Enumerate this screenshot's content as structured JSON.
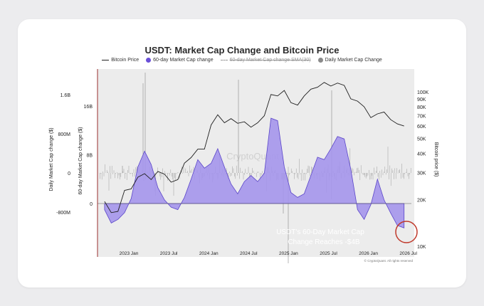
{
  "chart_data": {
    "type": "area",
    "title": "USDT: Market Cap Change and Bitcoin Price",
    "legend": [
      {
        "label": "Bitcoin Price",
        "style": "line",
        "color": "#222222"
      },
      {
        "label": "60-day Market Cap change",
        "style": "dot",
        "color": "#6a4fd8"
      },
      {
        "label": "60-day Market Cap change SMA(30)",
        "style": "dashed",
        "color": "#9a9a9a",
        "struck": true
      },
      {
        "label": "Daily Market Cap Change",
        "style": "dot",
        "color": "#8a8a8a"
      }
    ],
    "y_left_outer": {
      "label": "Daily Market Cap change ($)",
      "ticks": [
        "1.6B",
        "800M",
        "0",
        "-800M"
      ],
      "range": [
        -1200000000,
        1600000000
      ]
    },
    "y_left_inner": {
      "label": "60-day Market Cap change ($)",
      "ticks": [
        "16B",
        "8B",
        "0"
      ],
      "range": [
        -5000000000,
        16000000000
      ]
    },
    "y_right": {
      "label": "Bitcoin price ($)",
      "scale": "log",
      "ticks": [
        "100K",
        "90K",
        "80K",
        "70K",
        "60K",
        "50K",
        "40K",
        "30K",
        "20K",
        "10K"
      ]
    },
    "x_ticks": [
      "2023 Jan",
      "2023 Jul",
      "2024 Jan",
      "2024 Jul",
      "2025 Jan",
      "2025 Jul",
      "2026 Jan",
      "2026 Jul"
    ],
    "series_60d_mcap_change_B": [
      {
        "x": "2022-10",
        "y": -1.0
      },
      {
        "x": "2022-11",
        "y": -3.2
      },
      {
        "x": "2022-12",
        "y": -2.6
      },
      {
        "x": "2023-01",
        "y": -1.5
      },
      {
        "x": "2023-02",
        "y": 0.8
      },
      {
        "x": "2023-03",
        "y": 6.0
      },
      {
        "x": "2023-04",
        "y": 8.6
      },
      {
        "x": "2023-05",
        "y": 6.4
      },
      {
        "x": "2023-06",
        "y": 2.6
      },
      {
        "x": "2023-07",
        "y": 0.6
      },
      {
        "x": "2023-08",
        "y": -0.6
      },
      {
        "x": "2023-09",
        "y": -1.0
      },
      {
        "x": "2023-10",
        "y": 1.0
      },
      {
        "x": "2023-11",
        "y": 4.0
      },
      {
        "x": "2023-12",
        "y": 7.2
      },
      {
        "x": "2024-01",
        "y": 5.8
      },
      {
        "x": "2024-02",
        "y": 6.6
      },
      {
        "x": "2024-03",
        "y": 9.0
      },
      {
        "x": "2024-04",
        "y": 6.0
      },
      {
        "x": "2024-05",
        "y": 3.2
      },
      {
        "x": "2024-06",
        "y": 1.6
      },
      {
        "x": "2024-07",
        "y": 3.6
      },
      {
        "x": "2024-08",
        "y": 4.6
      },
      {
        "x": "2024-09",
        "y": 3.6
      },
      {
        "x": "2024-10",
        "y": 5.0
      },
      {
        "x": "2024-11",
        "y": 14.0
      },
      {
        "x": "2024-12",
        "y": 13.6
      },
      {
        "x": "2025-01",
        "y": 6.0
      },
      {
        "x": "2025-02",
        "y": 1.8
      },
      {
        "x": "2025-03",
        "y": 1.0
      },
      {
        "x": "2025-04",
        "y": 1.6
      },
      {
        "x": "2025-05",
        "y": 4.6
      },
      {
        "x": "2025-06",
        "y": 7.6
      },
      {
        "x": "2025-07",
        "y": 7.2
      },
      {
        "x": "2025-08",
        "y": 9.0
      },
      {
        "x": "2025-09",
        "y": 11.0
      },
      {
        "x": "2025-10",
        "y": 10.6
      },
      {
        "x": "2025-11",
        "y": 5.6
      },
      {
        "x": "2025-12",
        "y": -1.0
      },
      {
        "x": "2026-01",
        "y": -2.6
      },
      {
        "x": "2026-02",
        "y": -0.2
      },
      {
        "x": "2026-03",
        "y": 4.0
      },
      {
        "x": "2026-04",
        "y": 0.6
      },
      {
        "x": "2026-05",
        "y": -1.6
      },
      {
        "x": "2026-06",
        "y": -3.6
      },
      {
        "x": "2026-07",
        "y": -4.0
      }
    ],
    "series_btc_price_K": [
      {
        "x": "2022-10",
        "y": 19.5
      },
      {
        "x": "2022-11",
        "y": 16.5
      },
      {
        "x": "2022-12",
        "y": 16.8
      },
      {
        "x": "2023-01",
        "y": 23.0
      },
      {
        "x": "2023-02",
        "y": 23.5
      },
      {
        "x": "2023-03",
        "y": 28.0
      },
      {
        "x": "2023-04",
        "y": 29.5
      },
      {
        "x": "2023-05",
        "y": 27.0
      },
      {
        "x": "2023-06",
        "y": 30.5
      },
      {
        "x": "2023-07",
        "y": 29.3
      },
      {
        "x": "2023-08",
        "y": 26.0
      },
      {
        "x": "2023-09",
        "y": 27.0
      },
      {
        "x": "2023-10",
        "y": 34.5
      },
      {
        "x": "2023-11",
        "y": 37.5
      },
      {
        "x": "2023-12",
        "y": 42.5
      },
      {
        "x": "2024-01",
        "y": 42.5
      },
      {
        "x": "2024-02",
        "y": 61.0
      },
      {
        "x": "2024-03",
        "y": 71.0
      },
      {
        "x": "2024-04",
        "y": 63.0
      },
      {
        "x": "2024-05",
        "y": 67.0
      },
      {
        "x": "2024-06",
        "y": 62.5
      },
      {
        "x": "2024-07",
        "y": 64.0
      },
      {
        "x": "2024-08",
        "y": 59.0
      },
      {
        "x": "2024-09",
        "y": 63.0
      },
      {
        "x": "2024-10",
        "y": 70.0
      },
      {
        "x": "2024-11",
        "y": 96.0
      },
      {
        "x": "2024-12",
        "y": 94.0
      },
      {
        "x": "2025-01",
        "y": 102.0
      },
      {
        "x": "2025-02",
        "y": 85.0
      },
      {
        "x": "2025-03",
        "y": 82.0
      },
      {
        "x": "2025-04",
        "y": 94.0
      },
      {
        "x": "2025-05",
        "y": 104.0
      },
      {
        "x": "2025-06",
        "y": 107.0
      },
      {
        "x": "2025-07",
        "y": 115.0
      },
      {
        "x": "2025-08",
        "y": 109.0
      },
      {
        "x": "2025-09",
        "y": 114.0
      },
      {
        "x": "2025-10",
        "y": 110.0
      },
      {
        "x": "2025-11",
        "y": 90.0
      },
      {
        "x": "2025-12",
        "y": 87.0
      },
      {
        "x": "2026-01",
        "y": 80.0
      },
      {
        "x": "2026-02",
        "y": 68.0
      },
      {
        "x": "2026-03",
        "y": 72.0
      },
      {
        "x": "2026-04",
        "y": 74.0
      },
      {
        "x": "2026-05",
        "y": 66.0
      },
      {
        "x": "2026-06",
        "y": 62.0
      },
      {
        "x": "2026-07",
        "y": 60.0
      }
    ],
    "annotation": {
      "line1": "USDT's 60-Day Market Cap",
      "line2": "Change Reaches -$4B"
    },
    "watermark": "CryptoQuant",
    "credit": "© CryptoQuant. All rights reserved",
    "colors": {
      "area": "#a596ec",
      "area_stroke": "#5b46c9",
      "btc": "#1e1e1e",
      "daily": "#8a8a8a",
      "highlight": "#c0392b"
    }
  }
}
